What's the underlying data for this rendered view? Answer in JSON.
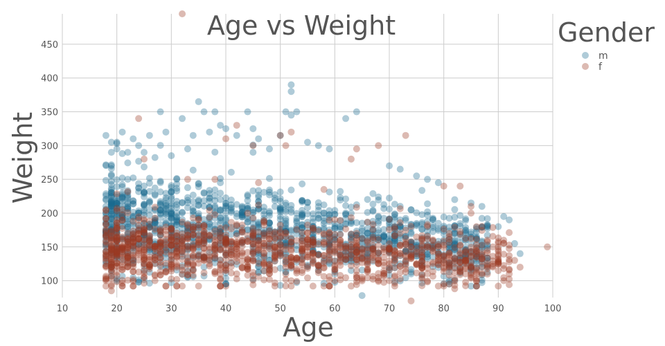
{
  "chart_data": {
    "type": "scatter",
    "title": "Age vs Weight",
    "xlabel": "Age",
    "ylabel": "Weight",
    "xlim": [
      10,
      100
    ],
    "ylim": [
      75,
      495
    ],
    "xticks": [
      10,
      20,
      30,
      40,
      50,
      60,
      70,
      80,
      90,
      100
    ],
    "yticks": [
      100,
      150,
      200,
      250,
      300,
      350,
      400,
      450
    ],
    "grid": true,
    "legend": {
      "title": "Gender",
      "placement": "top-right outside",
      "entries": [
        {
          "label": "m",
          "color": "#1b6a8e"
        },
        {
          "label": "f",
          "color": "#9a3a22"
        }
      ]
    },
    "series": [
      {
        "name": "m",
        "color": "#1b6a8e",
        "opacity": 0.35,
        "points": [
          [
            18,
            315
          ],
          [
            19,
            290
          ],
          [
            21,
            320
          ],
          [
            22,
            290
          ],
          [
            23,
            310
          ],
          [
            24,
            300
          ],
          [
            26,
            315
          ],
          [
            28,
            350
          ],
          [
            29,
            320
          ],
          [
            32,
            340
          ],
          [
            33,
            295
          ],
          [
            34,
            315
          ],
          [
            35,
            365
          ],
          [
            36,
            350
          ],
          [
            37,
            320
          ],
          [
            38,
            350
          ],
          [
            39,
            330
          ],
          [
            40,
            325
          ],
          [
            42,
            315
          ],
          [
            44,
            350
          ],
          [
            45,
            325
          ],
          [
            46,
            310
          ],
          [
            48,
            295
          ],
          [
            50,
            315
          ],
          [
            51,
            350
          ],
          [
            52,
            390
          ],
          [
            52,
            380
          ],
          [
            52,
            345
          ],
          [
            53,
            350
          ],
          [
            55,
            305
          ],
          [
            57,
            300
          ],
          [
            59,
            295
          ],
          [
            62,
            340
          ],
          [
            64,
            350
          ],
          [
            65,
            78
          ],
          [
            70,
            270
          ],
          [
            72,
            265
          ],
          [
            75,
            255
          ],
          [
            77,
            250
          ],
          [
            79,
            245
          ],
          [
            82,
            220
          ],
          [
            85,
            215
          ],
          [
            87,
            210
          ],
          [
            88,
            180
          ],
          [
            90,
            180
          ],
          [
            91,
            195
          ],
          [
            92,
            190
          ],
          [
            93,
            155
          ],
          [
            94,
            140
          ],
          [
            81,
            95
          ],
          [
            50,
            93
          ],
          [
            40,
            95
          ],
          [
            30,
            97
          ],
          [
            20,
            100
          ],
          [
            25,
            290
          ],
          [
            30,
            285
          ],
          [
            20,
            295
          ],
          [
            45,
            290
          ]
        ],
        "cloud": {
          "x_min": 18,
          "x_max": 88,
          "y_center_start": 195,
          "y_center_end": 150,
          "y_spread": 38,
          "count": 1400,
          "seed": 11
        }
      },
      {
        "name": "f",
        "color": "#9a3a22",
        "opacity": 0.35,
        "points": [
          [
            18,
            100
          ],
          [
            19,
            85
          ],
          [
            24,
            340
          ],
          [
            25,
            280
          ],
          [
            32,
            495
          ],
          [
            33,
            250
          ],
          [
            38,
            250
          ],
          [
            40,
            310
          ],
          [
            42,
            330
          ],
          [
            45,
            300
          ],
          [
            46,
            245
          ],
          [
            50,
            315
          ],
          [
            51,
            300
          ],
          [
            52,
            320
          ],
          [
            58,
            235
          ],
          [
            63,
            280
          ],
          [
            64,
            295
          ],
          [
            68,
            300
          ],
          [
            73,
            315
          ],
          [
            74,
            70
          ],
          [
            76,
            105
          ],
          [
            80,
            95
          ],
          [
            82,
            88
          ],
          [
            84,
            110
          ],
          [
            85,
            210
          ],
          [
            86,
            180
          ],
          [
            88,
            120
          ],
          [
            89,
            150
          ],
          [
            90,
            125
          ],
          [
            91,
            100
          ],
          [
            92,
            110
          ],
          [
            93,
            130
          ],
          [
            94,
            120
          ],
          [
            99,
            150
          ],
          [
            80,
            240
          ],
          [
            83,
            240
          ],
          [
            85,
            200
          ],
          [
            88,
            160
          ],
          [
            70,
            100
          ],
          [
            65,
            105
          ],
          [
            60,
            100
          ]
        ],
        "cloud": {
          "x_min": 18,
          "x_max": 92,
          "y_center_start": 150,
          "y_center_end": 130,
          "y_spread": 28,
          "count": 1300,
          "seed": 23
        }
      }
    ]
  }
}
